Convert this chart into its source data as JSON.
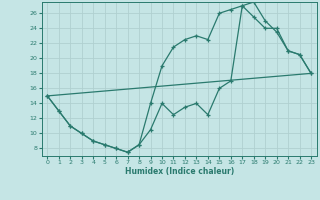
{
  "xlabel": "Humidex (Indice chaleur)",
  "xlim": [
    -0.5,
    23.5
  ],
  "ylim": [
    7,
    27.5
  ],
  "yticks": [
    8,
    10,
    12,
    14,
    16,
    18,
    20,
    22,
    24,
    26
  ],
  "xticks": [
    0,
    1,
    2,
    3,
    4,
    5,
    6,
    7,
    8,
    9,
    10,
    11,
    12,
    13,
    14,
    15,
    16,
    17,
    18,
    19,
    20,
    21,
    22,
    23
  ],
  "bg_color": "#c5e5e5",
  "grid_color": "#b0d0d0",
  "line_color": "#2a7a6e",
  "line1_x": [
    0,
    1,
    2,
    3,
    4,
    5,
    6,
    7,
    8,
    9,
    10,
    11,
    12,
    13,
    14,
    15,
    16,
    17,
    18,
    19,
    20,
    21,
    22,
    23
  ],
  "line1_y": [
    15,
    13,
    11,
    10,
    9,
    8.5,
    8,
    7.5,
    8.5,
    14,
    19,
    21.5,
    22.5,
    23,
    22.5,
    26,
    26.5,
    27,
    25.5,
    24,
    24,
    21,
    20.5,
    18
  ],
  "line2_x": [
    0,
    1,
    2,
    3,
    4,
    5,
    6,
    7,
    8,
    9,
    10,
    11,
    12,
    13,
    14,
    15,
    16,
    17,
    18,
    19,
    20,
    21,
    22,
    23
  ],
  "line2_y": [
    15,
    13,
    11,
    10,
    9,
    8.5,
    8,
    7.5,
    8.5,
    10.5,
    14,
    12.5,
    13.5,
    14,
    12.5,
    16,
    17,
    27,
    27.5,
    25,
    23.5,
    21,
    20.5,
    18
  ],
  "line3_x": [
    0,
    23
  ],
  "line3_y": [
    15,
    18
  ]
}
